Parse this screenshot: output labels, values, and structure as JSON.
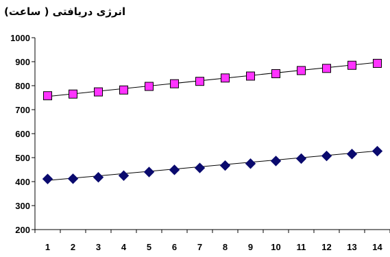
{
  "chart_data": {
    "type": "line",
    "title": "انرژی دریافتی ( ساعت)",
    "x": [
      1,
      2,
      3,
      4,
      5,
      6,
      7,
      8,
      9,
      10,
      11,
      12,
      13,
      14
    ],
    "ylim": [
      200,
      1000
    ],
    "yticks": [
      200,
      300,
      400,
      500,
      600,
      700,
      800,
      900,
      1000
    ],
    "grid": false,
    "series": [
      {
        "marker": "square",
        "color": "#ff33ff",
        "values": [
          758,
          765,
          774,
          782,
          797,
          808,
          818,
          832,
          840,
          850,
          863,
          872,
          885,
          893
        ]
      },
      {
        "marker": "diamond",
        "color": "#0a0a6e",
        "values": [
          411,
          412,
          418,
          425,
          440,
          449,
          457,
          467,
          475,
          486,
          496,
          507,
          515,
          527
        ]
      }
    ],
    "trendlines": [
      {
        "start": 755,
        "end": 897
      },
      {
        "start": 405,
        "end": 528
      }
    ]
  }
}
